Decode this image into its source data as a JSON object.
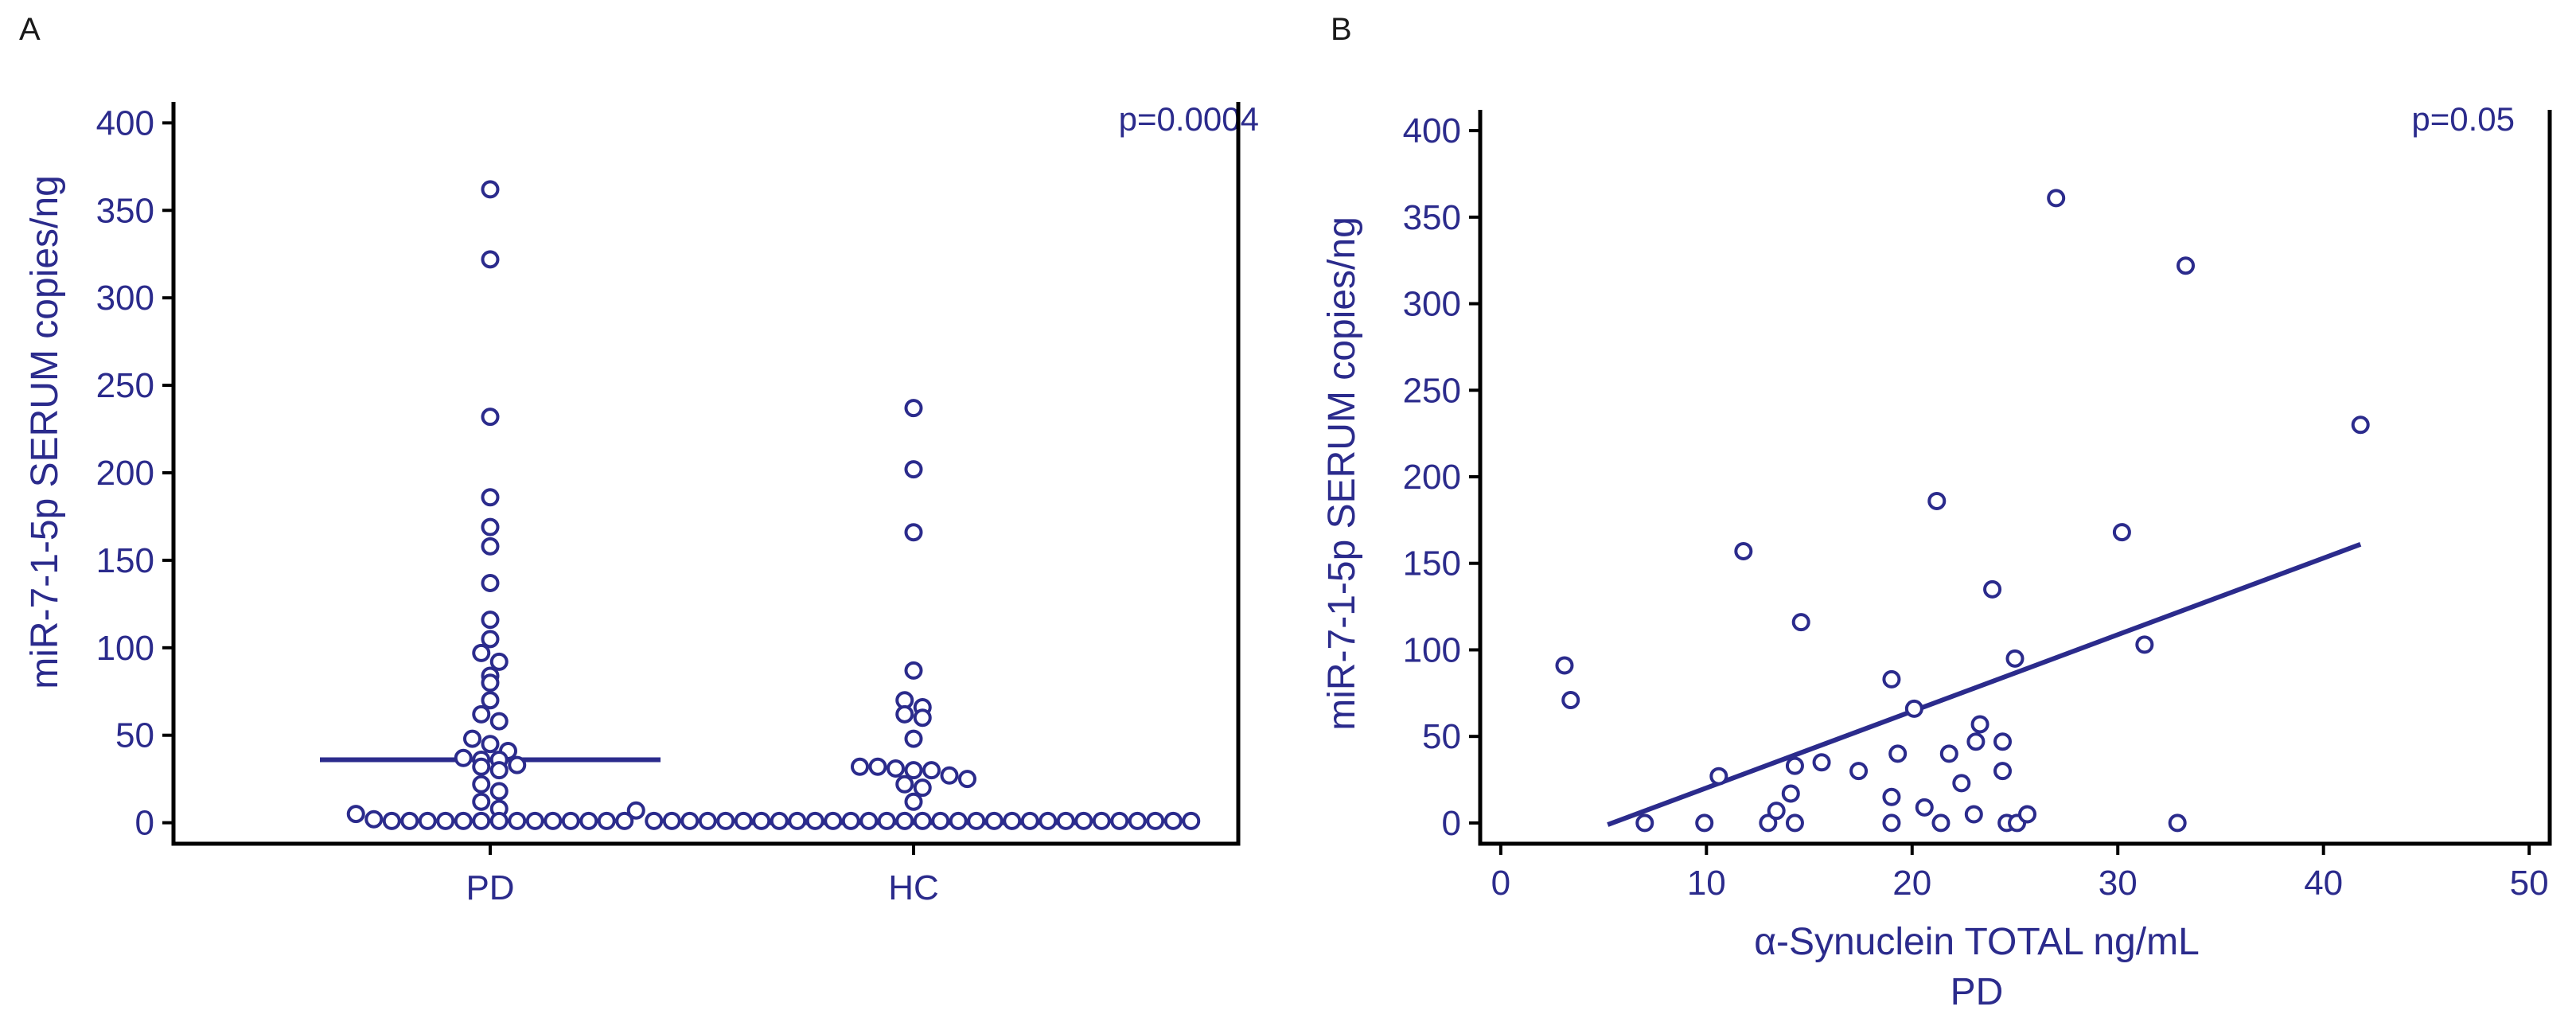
{
  "chart_data": [
    {
      "panel": "A",
      "type": "scatter",
      "subtype": "dot-plot",
      "title": "",
      "ylabel": "miR-7-1-5p SERUM copies/ng",
      "xlabel": "",
      "ylim": [
        -12,
        412
      ],
      "yticks": [
        0,
        50,
        100,
        150,
        200,
        250,
        300,
        350,
        400
      ],
      "categories": [
        "PD",
        "HC"
      ],
      "annotation": "p=0.0004",
      "median_lines": [
        {
          "category": "PD",
          "value": 36
        },
        {
          "category": "HC",
          "value": 0
        }
      ],
      "series": [
        {
          "name": "PD",
          "values": [
            362,
            322,
            232,
            186,
            169,
            158,
            137,
            116,
            105,
            97,
            92,
            84,
            80,
            70,
            62,
            58,
            48,
            45,
            41,
            37,
            36,
            36,
            33,
            32,
            30,
            22,
            18,
            12,
            8,
            5,
            2,
            1,
            1,
            1,
            1,
            1,
            1,
            1,
            1,
            1,
            1,
            1,
            1,
            1,
            1
          ]
        },
        {
          "name": "HC",
          "values": [
            237,
            202,
            166,
            87,
            70,
            66,
            62,
            60,
            48,
            32,
            32,
            31,
            30,
            30,
            27,
            25,
            22,
            20,
            12,
            7,
            1,
            1,
            1,
            1,
            1,
            1,
            1,
            1,
            1,
            1,
            1,
            1,
            1,
            1,
            1,
            1,
            1,
            1,
            1,
            1,
            1,
            1,
            1,
            1,
            1,
            1,
            1,
            1,
            1,
            1,
            1
          ]
        }
      ]
    },
    {
      "panel": "B",
      "type": "scatter",
      "title": "",
      "ylabel": "miR-7-1-5p SERUM copies/ng",
      "xlabel": "α-Synuclein TOTAL ng/mL",
      "xlabel2": "PD",
      "xlim": [
        -1,
        51
      ],
      "ylim": [
        -12,
        412
      ],
      "xticks": [
        0,
        10,
        20,
        30,
        40,
        50
      ],
      "yticks": [
        0,
        50,
        100,
        150,
        200,
        250,
        300,
        350,
        400
      ],
      "annotation": "p=0.05",
      "regression_line": {
        "x": [
          5.2,
          41.8
        ],
        "y": [
          -1,
          161
        ]
      },
      "points": [
        {
          "x": 3.1,
          "y": 91
        },
        {
          "x": 3.4,
          "y": 71
        },
        {
          "x": 7.0,
          "y": 0
        },
        {
          "x": 9.9,
          "y": 0
        },
        {
          "x": 10.6,
          "y": 27
        },
        {
          "x": 11.8,
          "y": 157
        },
        {
          "x": 13.0,
          "y": 0
        },
        {
          "x": 13.4,
          "y": 7
        },
        {
          "x": 14.1,
          "y": 17
        },
        {
          "x": 14.3,
          "y": 0
        },
        {
          "x": 14.3,
          "y": 33
        },
        {
          "x": 14.6,
          "y": 116
        },
        {
          "x": 15.6,
          "y": 35
        },
        {
          "x": 17.4,
          "y": 30
        },
        {
          "x": 19.0,
          "y": 83
        },
        {
          "x": 19.0,
          "y": 15
        },
        {
          "x": 19.0,
          "y": 0
        },
        {
          "x": 19.3,
          "y": 40
        },
        {
          "x": 20.1,
          "y": 66
        },
        {
          "x": 20.6,
          "y": 9
        },
        {
          "x": 21.2,
          "y": 186
        },
        {
          "x": 21.4,
          "y": 0
        },
        {
          "x": 21.8,
          "y": 40
        },
        {
          "x": 22.4,
          "y": 23
        },
        {
          "x": 23.0,
          "y": 5
        },
        {
          "x": 23.1,
          "y": 47
        },
        {
          "x": 23.3,
          "y": 57
        },
        {
          "x": 23.9,
          "y": 135
        },
        {
          "x": 24.4,
          "y": 47
        },
        {
          "x": 24.4,
          "y": 30
        },
        {
          "x": 24.6,
          "y": 0
        },
        {
          "x": 25.0,
          "y": 95
        },
        {
          "x": 25.1,
          "y": 0
        },
        {
          "x": 25.6,
          "y": 5
        },
        {
          "x": 27.0,
          "y": 361
        },
        {
          "x": 30.2,
          "y": 168
        },
        {
          "x": 31.3,
          "y": 103
        },
        {
          "x": 32.9,
          "y": 0
        },
        {
          "x": 33.3,
          "y": 322
        },
        {
          "x": 41.8,
          "y": 230
        }
      ]
    }
  ]
}
